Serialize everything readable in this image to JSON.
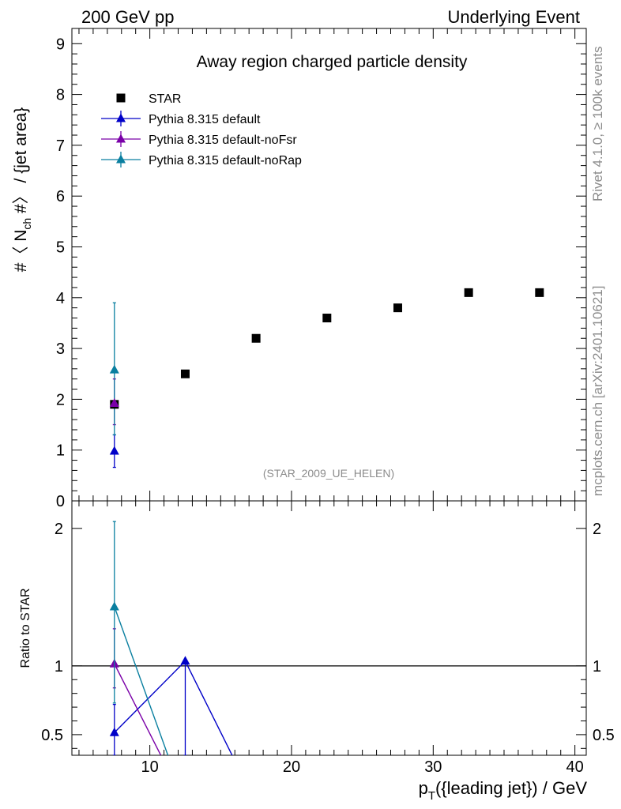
{
  "header": {
    "left": "200 GeV pp",
    "right": "Underlying Event"
  },
  "side_labels": {
    "rivet": "Rivet 4.1.0, ≥ 100k events",
    "source": "mcplots.cern.ch [arXiv:2401.10621]"
  },
  "colors": {
    "star": "#000000",
    "default": "#0000c8",
    "noFsr": "#7a00a8",
    "noRap": "#0a7fa0"
  },
  "chart_data": [
    {
      "type": "scatter",
      "title": "Away region charged particle density",
      "annotation": "(STAR_2009_UE_HELEN)",
      "ylabel_parts": [
        "#〈 N",
        "ch",
        " #〉 / {jet area}"
      ],
      "xlim": [
        4.5,
        40.8
      ],
      "ylim": [
        0,
        9.3
      ],
      "yticks": [
        0,
        1,
        2,
        3,
        4,
        5,
        6,
        7,
        8,
        9
      ],
      "legend": [
        {
          "label": "STAR",
          "marker": "square",
          "color_key": "star"
        },
        {
          "label": "Pythia 8.315 default",
          "marker": "triangle",
          "color_key": "default"
        },
        {
          "label": "Pythia 8.315 default-noFsr",
          "marker": "triangle",
          "color_key": "noFsr"
        },
        {
          "label": "Pythia 8.315 default-noRap",
          "marker": "triangle",
          "color_key": "noRap"
        }
      ],
      "series": [
        {
          "name": "STAR",
          "color_key": "star",
          "marker": "square",
          "x": [
            7.5,
            12.5,
            17.5,
            22.5,
            27.5,
            32.5,
            37.5
          ],
          "y": [
            1.9,
            2.5,
            3.2,
            3.6,
            3.8,
            4.1,
            4.1
          ]
        },
        {
          "name": "Pythia 8.315 default",
          "color_key": "default",
          "marker": "triangle",
          "x": [
            7.5
          ],
          "y": [
            0.98
          ],
          "err": [
            [
              0.66,
              1.3
            ]
          ]
        },
        {
          "name": "Pythia 8.315 default-noFsr",
          "color_key": "noFsr",
          "marker": "triangle",
          "x": [
            7.5
          ],
          "y": [
            1.92
          ],
          "err": [
            [
              1.5,
              2.4
            ]
          ]
        },
        {
          "name": "Pythia 8.315 default-noRap",
          "color_key": "noRap",
          "marker": "triangle",
          "x": [
            7.5
          ],
          "y": [
            2.58
          ],
          "err": [
            [
              1.3,
              3.9
            ]
          ]
        }
      ]
    },
    {
      "type": "line",
      "ylabel": "Ratio to STAR",
      "xlabel_parts": [
        "p",
        "T",
        "({leading jet}) / GeV"
      ],
      "xlim": [
        4.5,
        40.8
      ],
      "ylim": [
        0.35,
        2.2
      ],
      "xticks": [
        10,
        20,
        30,
        40
      ],
      "yticks": [
        0.5,
        1,
        2
      ],
      "ytick_labels": [
        "0.5",
        "1",
        "2"
      ],
      "reference": 1,
      "series": [
        {
          "name": "Pythia 8.315 default",
          "color_key": "default",
          "x": [
            7.5,
            12.5,
            17.5
          ],
          "y": [
            0.515,
            1.035,
            0.0
          ],
          "err": [
            [
              0.35,
              0.72
            ],
            [
              0.35,
              1.035
            ],
            null
          ]
        },
        {
          "name": "Pythia 8.315 default-noFsr",
          "color_key": "noFsr",
          "x": [
            7.5,
            12.5
          ],
          "y": [
            1.015,
            0.0
          ],
          "err": [
            [
              0.84,
              1.27
            ],
            null
          ]
        },
        {
          "name": "Pythia 8.315 default-noRap",
          "color_key": "noRap",
          "x": [
            7.5,
            12.5
          ],
          "y": [
            1.43,
            0.0
          ],
          "err": [
            [
              0.73,
              2.05
            ],
            null
          ]
        }
      ]
    }
  ]
}
